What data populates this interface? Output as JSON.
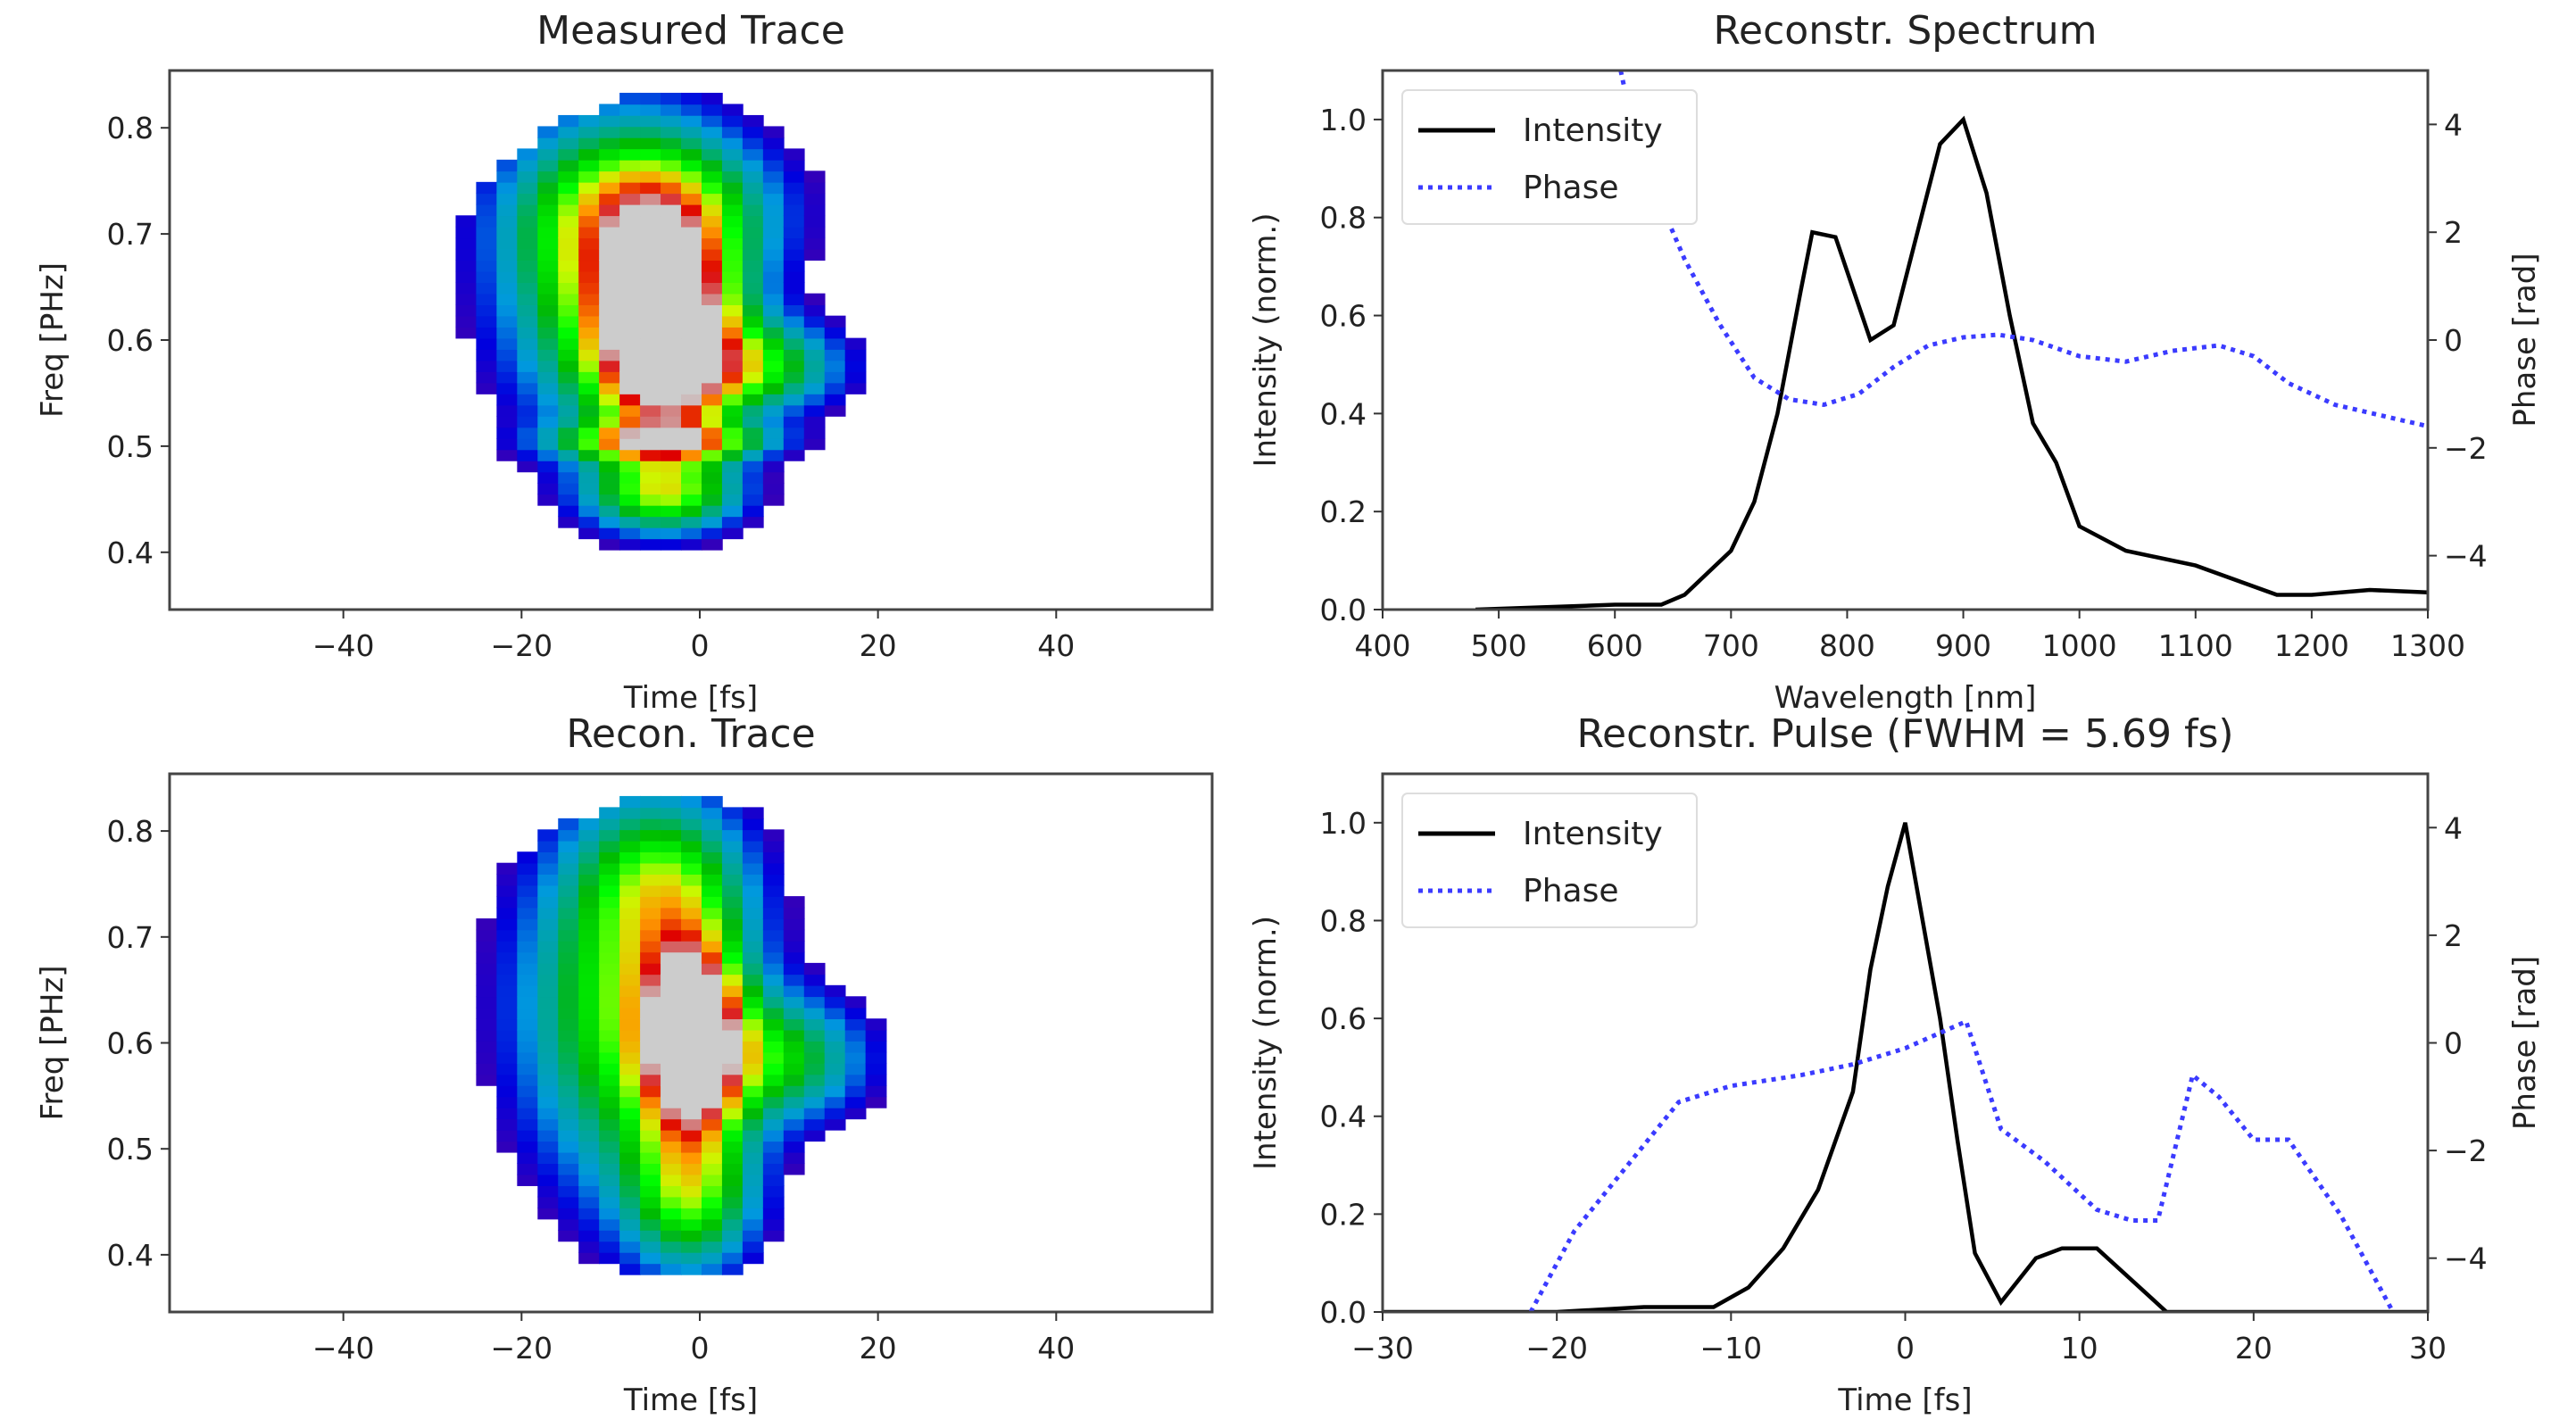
{
  "chart_data": [
    {
      "type": "heatmap",
      "title": "Measured Trace",
      "xlabel": "Time [fs]",
      "ylabel": "Freq [PHz]",
      "xlim": [
        -59.5,
        57.5
      ],
      "ylim": [
        0.346,
        0.854
      ],
      "xticks": [
        -40,
        -20,
        0,
        20,
        40
      ],
      "yticks": [
        0.4,
        0.5,
        0.6,
        0.7,
        0.8
      ],
      "colormap": "nipy_spectral"
    },
    {
      "type": "line",
      "title": "Reconstr. Spectrum",
      "xlabel": "Wavelength [nm]",
      "ylabel": "Intensity (norm.)",
      "y2label": "Phase [rad]",
      "xlim": [
        400,
        1300
      ],
      "ylim": [
        0,
        1.1
      ],
      "y2lim": [
        -5,
        5
      ],
      "xticks": [
        400,
        500,
        600,
        700,
        800,
        900,
        1000,
        1100,
        1200,
        1300
      ],
      "yticks": [
        0.0,
        0.2,
        0.4,
        0.6,
        0.8,
        1.0
      ],
      "y2ticks": [
        -4,
        -2,
        0,
        2,
        4
      ],
      "legend": "top-left",
      "series": [
        {
          "name": "Intensity",
          "axis": "left",
          "color": "#000000",
          "style": "solid",
          "x": [
            480,
            600,
            640,
            660,
            700,
            720,
            740,
            760,
            770,
            790,
            820,
            840,
            880,
            900,
            920,
            940,
            960,
            980,
            1000,
            1040,
            1100,
            1170,
            1200,
            1250,
            1300
          ],
          "y": [
            0,
            0.01,
            0.01,
            0.03,
            0.12,
            0.22,
            0.4,
            0.65,
            0.77,
            0.76,
            0.55,
            0.58,
            0.95,
            1.0,
            0.85,
            0.6,
            0.38,
            0.3,
            0.17,
            0.12,
            0.09,
            0.03,
            0.03,
            0.04,
            0.035
          ]
        },
        {
          "name": "Phase",
          "axis": "right",
          "color": "#3b3bff",
          "style": "dotted",
          "x": [
            605,
            620,
            640,
            660,
            690,
            720,
            750,
            780,
            810,
            840,
            870,
            900,
            930,
            960,
            1000,
            1040,
            1080,
            1120,
            1150,
            1180,
            1220,
            1260,
            1300
          ],
          "y": [
            5,
            3.5,
            2.5,
            1.5,
            0.3,
            -0.7,
            -1.1,
            -1.2,
            -1.0,
            -0.5,
            -0.1,
            0.05,
            0.1,
            0.0,
            -0.3,
            -0.4,
            -0.2,
            -0.1,
            -0.3,
            -0.8,
            -1.2,
            -1.4,
            -1.6
          ]
        }
      ]
    },
    {
      "type": "heatmap",
      "title": "Recon. Trace",
      "xlabel": "Time [fs]",
      "ylabel": "Freq [PHz]",
      "xlim": [
        -59.5,
        57.5
      ],
      "ylim": [
        0.346,
        0.854
      ],
      "xticks": [
        -40,
        -20,
        0,
        20,
        40
      ],
      "yticks": [
        0.4,
        0.5,
        0.6,
        0.7,
        0.8
      ],
      "colormap": "nipy_spectral"
    },
    {
      "type": "line",
      "title": "Reconstr. Pulse (FWHM = 5.69 fs)",
      "xlabel": "Time [fs]",
      "ylabel": "Intensity (norm.)",
      "y2label": "Phase [rad]",
      "xlim": [
        -30,
        30
      ],
      "ylim": [
        0,
        1.1
      ],
      "y2lim": [
        -5,
        5
      ],
      "xticks": [
        -30,
        -20,
        -10,
        0,
        10,
        20,
        30
      ],
      "yticks": [
        0.0,
        0.2,
        0.4,
        0.6,
        0.8,
        1.0
      ],
      "y2ticks": [
        -4,
        -2,
        0,
        2,
        4
      ],
      "legend": "top-left",
      "series": [
        {
          "name": "Intensity",
          "axis": "left",
          "color": "#000000",
          "style": "solid",
          "x": [
            -30,
            -20,
            -15,
            -11,
            -9,
            -7,
            -5,
            -3,
            -2,
            -1,
            0,
            1,
            2,
            3,
            4,
            5.5,
            7.5,
            9,
            11,
            15,
            30
          ],
          "y": [
            0,
            0,
            0.01,
            0.01,
            0.05,
            0.13,
            0.25,
            0.45,
            0.7,
            0.87,
            1.0,
            0.8,
            0.6,
            0.35,
            0.12,
            0.02,
            0.11,
            0.13,
            0.13,
            0,
            0
          ]
        },
        {
          "name": "Phase",
          "axis": "right",
          "color": "#3b3bff",
          "style": "dotted",
          "x": [
            -21.5,
            -19,
            -16,
            -13,
            -10,
            -6,
            -3,
            0,
            3.5,
            5.5,
            8,
            11,
            13,
            14.5,
            16.5,
            18,
            20,
            22,
            25,
            28
          ],
          "y": [
            -5,
            -3.5,
            -2.3,
            -1.1,
            -0.8,
            -0.6,
            -0.4,
            -0.1,
            0.4,
            -1.6,
            -2.2,
            -3.1,
            -3.3,
            -3.3,
            -0.6,
            -1.0,
            -1.8,
            -1.8,
            -3.2,
            -5
          ]
        }
      ]
    }
  ]
}
